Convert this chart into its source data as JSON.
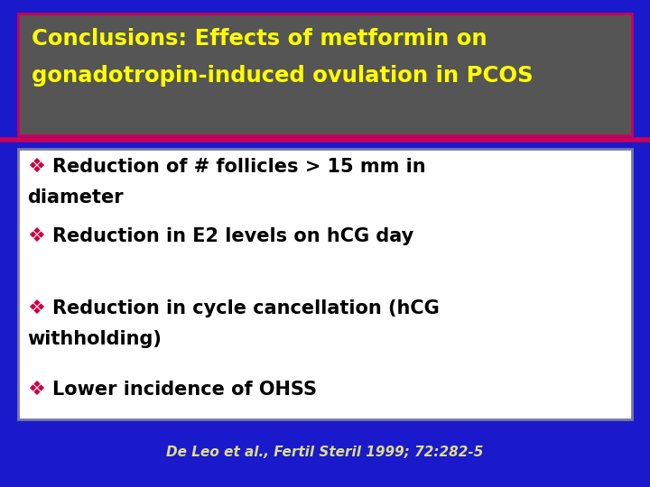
{
  "title_line1": "Conclusions: Effects of metformin on",
  "title_line2": "gonadotropin-induced ovulation in PCOS",
  "title_color": "#FFFF00",
  "title_bg_color": "#555555",
  "background_color": "#1A1ACC",
  "header_border_color": "#CC0055",
  "separator_color": "#CC0055",
  "bullet_symbol": "❖",
  "bullet_color": "#CC0044",
  "bullet_lines": [
    [
      "Reduction of # follicles > 15 mm in",
      "diameter"
    ],
    [
      "Reduction in E2 levels on hCG day"
    ],
    [
      "Reduction in cycle cancellation (hCG",
      "withholding)"
    ],
    [
      "Lower incidence of OHSS"
    ]
  ],
  "text_color": "#000000",
  "box_bg_color": "#FFFFFF",
  "box_border_color": "#7777AA",
  "citation": "De Leo et al., Fertil Steril 1999; 72:282-5",
  "citation_color": "#DDDD88"
}
